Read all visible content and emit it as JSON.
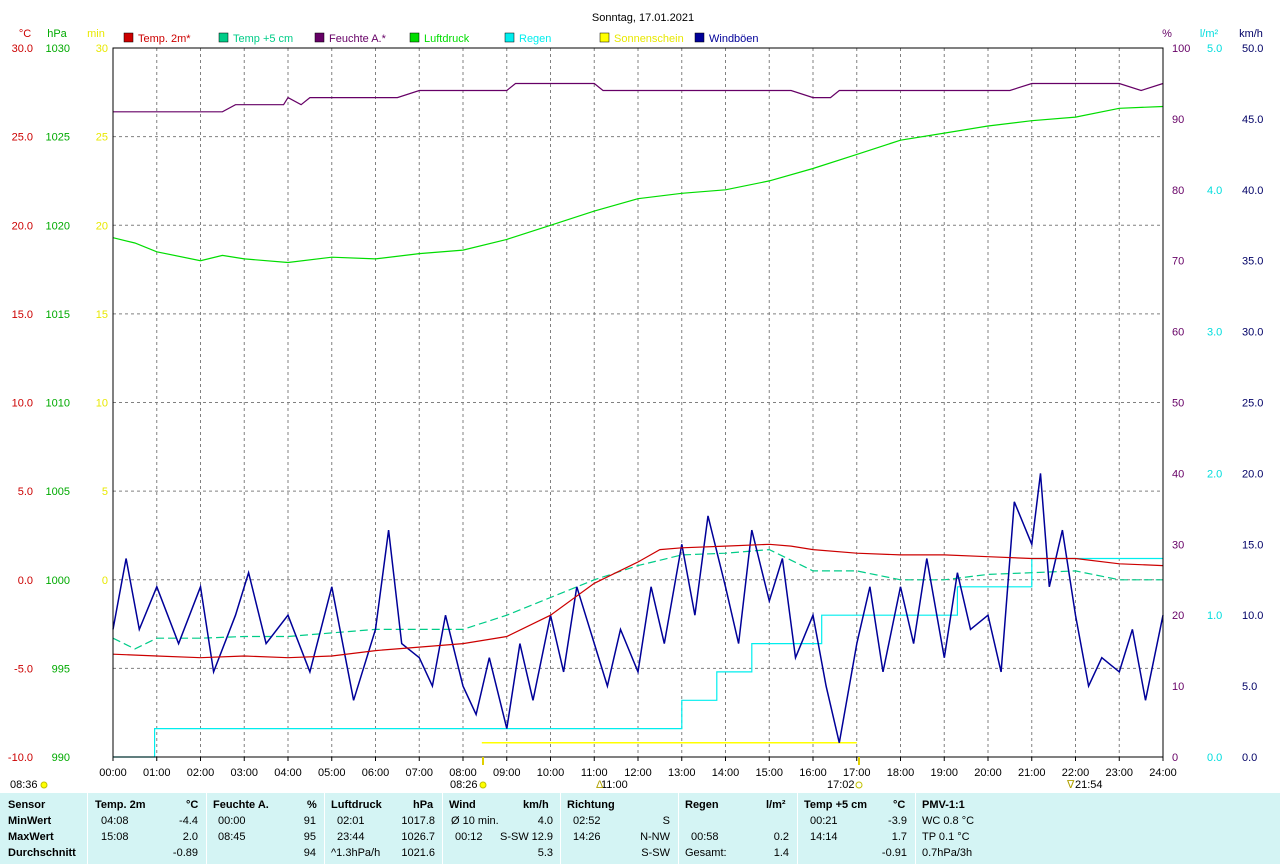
{
  "title": "Sonntag, 17.01.2021",
  "axes": {
    "left": [
      {
        "unit": "°C",
        "color": "#cc0000",
        "labels": [
          "30.0",
          "25.0",
          "20.0",
          "15.0",
          "10.0",
          "5.0",
          "0.0",
          "-5.0",
          "-10.0"
        ]
      },
      {
        "unit": "hPa",
        "color": "#00aa00",
        "labels": [
          "1030",
          "1025",
          "1020",
          "1015",
          "1010",
          "1005",
          "1000",
          "995",
          "990"
        ]
      },
      {
        "unit": "min",
        "color": "#e8e800",
        "labels": [
          "30",
          "25",
          "20",
          "15",
          "10",
          "5",
          "0"
        ]
      }
    ],
    "right": [
      {
        "unit": "%",
        "color": "#660066",
        "labels": [
          "100",
          "90",
          "80",
          "70",
          "60",
          "50",
          "40",
          "30",
          "20",
          "10",
          "0"
        ]
      },
      {
        "unit": "l/m²",
        "color": "#00dddd",
        "labels": [
          "5.0",
          "4.0",
          "3.0",
          "2.0",
          "1.0",
          "0.0"
        ]
      },
      {
        "unit": "km/h",
        "color": "#000066",
        "labels": [
          "50.0",
          "45.0",
          "40.0",
          "35.0",
          "30.0",
          "25.0",
          "20.0",
          "15.0",
          "10.0",
          "5.0",
          "0.0"
        ]
      }
    ],
    "x_labels": [
      "00:00",
      "01:00",
      "02:00",
      "03:00",
      "04:00",
      "05:00",
      "06:00",
      "07:00",
      "08:00",
      "09:00",
      "10:00",
      "11:00",
      "12:00",
      "13:00",
      "14:00",
      "15:00",
      "16:00",
      "17:00",
      "18:00",
      "19:00",
      "20:00",
      "21:00",
      "22:00",
      "23:00",
      "24:00"
    ]
  },
  "legend": [
    {
      "label": "Temp. 2m*",
      "color": "#cc0000"
    },
    {
      "label": "Temp +5 cm",
      "color": "#00cc88"
    },
    {
      "label": "Feuchte A.*",
      "color": "#660066"
    },
    {
      "label": "Luftdruck",
      "color": "#00dd00"
    },
    {
      "label": "Regen",
      "color": "#00eeee"
    },
    {
      "label": "Sonnenschein",
      "color": "#ffff00"
    },
    {
      "label": "Windböen",
      "color": "#000099"
    }
  ],
  "sun_marks": {
    "sunrise": "08:36",
    "sunrise_mark": "08:26",
    "noon": "11:00",
    "sunset": "17:02",
    "moon": "21:54"
  },
  "chart_data": {
    "type": "line",
    "title": "Sonntag, 17.01.2021",
    "x_unit": "hour",
    "xlim": [
      0,
      24
    ],
    "series": [
      {
        "name": "Temp. 2m*",
        "axis": "°C",
        "ylim": [
          -10,
          30
        ],
        "color": "#cc0000",
        "points": [
          [
            0,
            -4.2
          ],
          [
            1,
            -4.3
          ],
          [
            2,
            -4.4
          ],
          [
            3,
            -4.3
          ],
          [
            4,
            -4.4
          ],
          [
            5,
            -4.3
          ],
          [
            6,
            -4.0
          ],
          [
            7,
            -3.8
          ],
          [
            8,
            -3.6
          ],
          [
            9,
            -3.2
          ],
          [
            10,
            -2.0
          ],
          [
            11,
            -0.2
          ],
          [
            12,
            1.0
          ],
          [
            12.5,
            1.7
          ],
          [
            13,
            1.8
          ],
          [
            14,
            1.9
          ],
          [
            15,
            2.0
          ],
          [
            15.5,
            1.9
          ],
          [
            16,
            1.7
          ],
          [
            17,
            1.5
          ],
          [
            18,
            1.4
          ],
          [
            19,
            1.4
          ],
          [
            20,
            1.3
          ],
          [
            21,
            1.2
          ],
          [
            22,
            1.2
          ],
          [
            23,
            0.9
          ],
          [
            24,
            0.8
          ]
        ]
      },
      {
        "name": "Temp +5 cm",
        "axis": "°C",
        "ylim": [
          -10,
          30
        ],
        "color": "#00cc88",
        "dashed": true,
        "points": [
          [
            0,
            -3.3
          ],
          [
            0.5,
            -3.9
          ],
          [
            1,
            -3.3
          ],
          [
            2,
            -3.3
          ],
          [
            3,
            -3.2
          ],
          [
            4,
            -3.2
          ],
          [
            5,
            -3.0
          ],
          [
            6,
            -2.8
          ],
          [
            7,
            -2.8
          ],
          [
            8,
            -2.8
          ],
          [
            9,
            -2.0
          ],
          [
            10,
            -1.0
          ],
          [
            11,
            0.0
          ],
          [
            12,
            0.8
          ],
          [
            13,
            1.4
          ],
          [
            14,
            1.5
          ],
          [
            15,
            1.7
          ],
          [
            16,
            0.5
          ],
          [
            17,
            0.5
          ],
          [
            18,
            0.0
          ],
          [
            19,
            0.0
          ],
          [
            20,
            0.3
          ],
          [
            21,
            0.4
          ],
          [
            22,
            0.5
          ],
          [
            23,
            0.0
          ],
          [
            24,
            0.0
          ]
        ]
      },
      {
        "name": "Feuchte A.*",
        "axis": "%",
        "ylim": [
          0,
          100
        ],
        "color": "#660066",
        "points": [
          [
            0,
            91
          ],
          [
            2.5,
            91
          ],
          [
            2.8,
            92
          ],
          [
            3.9,
            92
          ],
          [
            4.0,
            93
          ],
          [
            4.3,
            92
          ],
          [
            4.5,
            93
          ],
          [
            6.5,
            93
          ],
          [
            7.0,
            94
          ],
          [
            9.0,
            94
          ],
          [
            9.2,
            95
          ],
          [
            11.0,
            95
          ],
          [
            11.2,
            94
          ],
          [
            12.5,
            94
          ],
          [
            13.0,
            94
          ],
          [
            15.5,
            94
          ],
          [
            16.0,
            93
          ],
          [
            16.4,
            93
          ],
          [
            16.6,
            94
          ],
          [
            20.5,
            94
          ],
          [
            21.0,
            95
          ],
          [
            23.0,
            95
          ],
          [
            23.5,
            94
          ],
          [
            24,
            95
          ]
        ]
      },
      {
        "name": "Luftdruck",
        "axis": "hPa",
        "ylim": [
          990,
          1030
        ],
        "color": "#00dd00",
        "points": [
          [
            0,
            1019.3
          ],
          [
            0.5,
            1019.0
          ],
          [
            1,
            1018.5
          ],
          [
            2,
            1018.0
          ],
          [
            2.5,
            1018.3
          ],
          [
            3,
            1018.1
          ],
          [
            4,
            1017.9
          ],
          [
            5,
            1018.2
          ],
          [
            6,
            1018.1
          ],
          [
            7,
            1018.4
          ],
          [
            8,
            1018.6
          ],
          [
            9,
            1019.2
          ],
          [
            10,
            1020.0
          ],
          [
            11,
            1020.8
          ],
          [
            12,
            1021.5
          ],
          [
            13,
            1021.8
          ],
          [
            14,
            1022.0
          ],
          [
            15,
            1022.5
          ],
          [
            16,
            1023.2
          ],
          [
            17,
            1024.0
          ],
          [
            18,
            1024.8
          ],
          [
            19,
            1025.2
          ],
          [
            20,
            1025.6
          ],
          [
            21,
            1025.9
          ],
          [
            22,
            1026.1
          ],
          [
            23,
            1026.6
          ],
          [
            24,
            1026.7
          ]
        ]
      },
      {
        "name": "Regen",
        "axis": "l/m²",
        "ylim": [
          0,
          5
        ],
        "color": "#00eeee",
        "points": [
          [
            0,
            0.0
          ],
          [
            0.95,
            0.0
          ],
          [
            0.95,
            0.2
          ],
          [
            13.0,
            0.2
          ],
          [
            13.0,
            0.4
          ],
          [
            13.8,
            0.4
          ],
          [
            13.8,
            0.6
          ],
          [
            14.6,
            0.6
          ],
          [
            14.6,
            0.8
          ],
          [
            16.2,
            0.8
          ],
          [
            16.2,
            1.0
          ],
          [
            19.3,
            1.0
          ],
          [
            19.3,
            1.2
          ],
          [
            21.0,
            1.2
          ],
          [
            21.0,
            1.4
          ],
          [
            24,
            1.4
          ]
        ]
      },
      {
        "name": "Windböen",
        "axis": "km/h",
        "ylim": [
          0,
          50
        ],
        "color": "#000099",
        "points": [
          [
            0,
            9
          ],
          [
            0.3,
            14
          ],
          [
            0.6,
            9
          ],
          [
            1,
            12
          ],
          [
            1.5,
            8
          ],
          [
            2,
            12
          ],
          [
            2.3,
            6
          ],
          [
            2.8,
            10
          ],
          [
            3.1,
            13
          ],
          [
            3.5,
            8
          ],
          [
            4,
            10
          ],
          [
            4.5,
            6
          ],
          [
            5,
            12
          ],
          [
            5.5,
            4
          ],
          [
            6,
            9
          ],
          [
            6.3,
            16
          ],
          [
            6.6,
            8
          ],
          [
            7,
            7
          ],
          [
            7.3,
            5
          ],
          [
            7.6,
            10
          ],
          [
            8,
            5
          ],
          [
            8.3,
            3
          ],
          [
            8.6,
            7
          ],
          [
            9,
            2
          ],
          [
            9.3,
            8
          ],
          [
            9.6,
            4
          ],
          [
            10,
            10
          ],
          [
            10.3,
            6
          ],
          [
            10.6,
            12
          ],
          [
            11,
            8
          ],
          [
            11.3,
            5
          ],
          [
            11.6,
            9
          ],
          [
            12,
            6
          ],
          [
            12.3,
            12
          ],
          [
            12.6,
            8
          ],
          [
            13,
            15
          ],
          [
            13.3,
            10
          ],
          [
            13.6,
            17
          ],
          [
            14,
            12
          ],
          [
            14.3,
            8
          ],
          [
            14.6,
            16
          ],
          [
            15,
            11
          ],
          [
            15.3,
            14
          ],
          [
            15.6,
            7
          ],
          [
            16,
            10
          ],
          [
            16.3,
            5
          ],
          [
            16.6,
            1
          ],
          [
            17,
            8
          ],
          [
            17.3,
            12
          ],
          [
            17.6,
            6
          ],
          [
            18,
            12
          ],
          [
            18.3,
            8
          ],
          [
            18.6,
            14
          ],
          [
            19,
            7
          ],
          [
            19.3,
            13
          ],
          [
            19.6,
            9
          ],
          [
            20,
            10
          ],
          [
            20.3,
            6
          ],
          [
            20.6,
            18
          ],
          [
            21,
            15
          ],
          [
            21.2,
            20
          ],
          [
            21.4,
            12
          ],
          [
            21.7,
            16
          ],
          [
            22,
            10
          ],
          [
            22.3,
            5
          ],
          [
            22.6,
            7
          ],
          [
            23,
            6
          ],
          [
            23.3,
            9
          ],
          [
            23.6,
            4
          ],
          [
            24,
            10
          ]
        ]
      },
      {
        "name": "Sonnenschein",
        "axis": "min",
        "ylim": [
          0,
          30
        ],
        "color": "#ffff00",
        "points": [
          [
            8.43,
            0.6
          ],
          [
            17.0,
            0.6
          ]
        ]
      }
    ]
  },
  "stats": {
    "sensor": {
      "header": "Sensor",
      "rows": [
        "MinWert",
        "MaxWert",
        "Durchschnitt"
      ]
    },
    "temp2m": {
      "header": "Temp. 2m",
      "unit": "°C",
      "min_t": "04:08",
      "min_v": "-4.4",
      "max_t": "15:08",
      "max_v": "2.0",
      "avg": "-0.89"
    },
    "feuchte": {
      "header": "Feuchte A.",
      "unit": "%",
      "min_t": "00:00",
      "min_v": "91",
      "max_t": "08:45",
      "max_v": "95",
      "avg": "94"
    },
    "luftdruck": {
      "header": "Luftdruck",
      "unit": "hPa",
      "min_t": "02:01",
      "min_v": "1017.8",
      "max_t": "23:44",
      "max_v": "1026.7",
      "trend": "^1.3hPa/h",
      "avg": "1021.6"
    },
    "wind": {
      "header": "Wind",
      "unit": "km/h",
      "r1_a": "Ø 10 min.",
      "r1_v": "4.0",
      "r2_a": "00:12",
      "r2_b": "S-SW",
      "r2_v": "12.9",
      "avg": "5.3"
    },
    "richtung": {
      "header": "Richtung",
      "r1_t": "02:52",
      "r1_v": "S",
      "r2_t": "14:26",
      "r2_v": "N-NW",
      "avg": "S-SW"
    },
    "regen": {
      "header": "Regen",
      "unit": "l/m²",
      "r2_t": "00:58",
      "r2_v": "0.2",
      "r3_l": "Gesamt:",
      "r3_v": "1.4"
    },
    "temp5": {
      "header": "Temp +5 cm",
      "unit": "°C",
      "min_t": "00:21",
      "min_v": "-3.9",
      "max_t": "14:14",
      "max_v": "1.7",
      "avg": "-0.91"
    },
    "pmv": {
      "header": "PMV-1:1",
      "r1": "WC 0.8 °C",
      "r2": "TP 0.1 °C",
      "r3": "0.7hPa/3h"
    }
  }
}
